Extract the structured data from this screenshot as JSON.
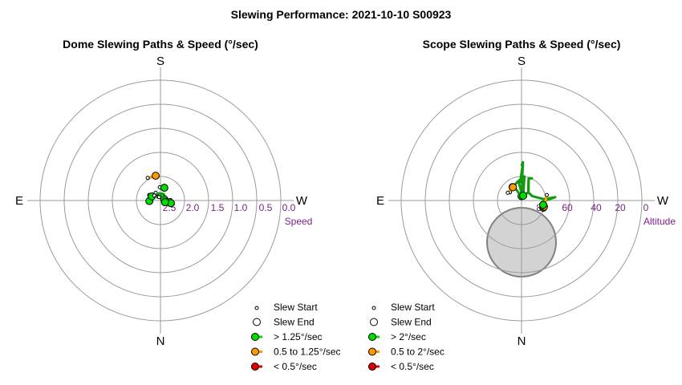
{
  "title": "Slewing Performance: 2021-10-10 S00923",
  "chart_data": [
    {
      "type": "scatter",
      "subtype": "polar-paths",
      "title": "Dome Slewing Paths & Speed (°/sec)",
      "directions": {
        "top": "S",
        "bottom": "N",
        "left": "E",
        "right": "W"
      },
      "radial_label": "Speed",
      "radial_ticks": [
        "2.5",
        "2.0",
        "1.5",
        "1.0",
        "0.5",
        "0.0"
      ],
      "radial_range": [
        2.5,
        0.0
      ],
      "grid": true,
      "legend": {
        "placement": "bottom-right",
        "entries": [
          {
            "label": "Slew Start",
            "marker": "start"
          },
          {
            "label": "Slew End",
            "marker": "end"
          },
          {
            "label": "> 1.25°/sec",
            "color": "#00dd00"
          },
          {
            "label": "0.5 to 1.25°/sec",
            "color": "#ff9900"
          },
          {
            "label": "< 0.5°/sec",
            "color": "#dd0000"
          }
        ]
      },
      "paths": [
        {
          "speed_class": "medium",
          "points": [
            [
              -0.53,
              0.94
            ],
            [
              -0.2,
              1.03
            ]
          ]
        },
        {
          "speed_class": "fast",
          "points": [
            [
              -0.03,
              0.55
            ],
            [
              0.16,
              0.53
            ]
          ]
        },
        {
          "speed_class": "fast",
          "points": [
            [
              -0.47,
              0.23
            ],
            [
              -0.42,
              0.05
            ],
            [
              -0.46,
              -0.02
            ]
          ]
        },
        {
          "speed_class": "fast",
          "points": [
            [
              -0.2,
              0.32
            ],
            [
              -0.33,
              0.18
            ],
            [
              -0.36,
              0.17
            ]
          ]
        },
        {
          "speed_class": "fast",
          "points": [
            [
              -0.26,
              0.21
            ],
            [
              -0.06,
              0.3
            ],
            [
              0.13,
              0.27
            ],
            [
              0.19,
              0.14
            ],
            [
              0.16,
              0.05
            ]
          ]
        },
        {
          "speed_class": "fast",
          "points": [
            [
              -0.1,
              0.16
            ],
            [
              -0.0,
              0.2
            ],
            [
              0.16,
              0.11
            ],
            [
              0.28,
              0.01
            ],
            [
              0.26,
              -0.05
            ]
          ]
        },
        {
          "speed_class": "fast",
          "points": [
            [
              0.42,
              0.02
            ],
            [
              0.43,
              -0.05
            ],
            [
              0.43,
              -0.11
            ]
          ]
        },
        {
          "speed_class": "fast",
          "points": [
            [
              -0.06,
              0.14
            ],
            [
              0.08,
              0.15
            ],
            [
              0.19,
              0.02
            ],
            [
              0.19,
              -0.07
            ]
          ]
        }
      ]
    },
    {
      "type": "scatter",
      "subtype": "polar-paths",
      "title": "Scope Slewing Paths & Speed (°/sec)",
      "directions": {
        "top": "S",
        "bottom": "N",
        "left": "E",
        "right": "W"
      },
      "radial_label": "Altitude",
      "radial_ticks": [
        "80",
        "60",
        "40",
        "20",
        "0"
      ],
      "radial_range": [
        90,
        0
      ],
      "grid": true,
      "shaded_region": "gray disc below center (restricted zone)",
      "legend": {
        "placement": "bottom-right",
        "entries": [
          {
            "label": "Slew Start",
            "marker": "start"
          },
          {
            "label": "Slew End",
            "marker": "end"
          },
          {
            "label": "> 2°/sec",
            "color": "#00dd00"
          },
          {
            "label": "0.5 to 2°/sec",
            "color": "#ff9900"
          },
          {
            "label": "< 0.5°/sec",
            "color": "#dd0000"
          }
        ]
      },
      "paths": [
        {
          "speed_class": "fast",
          "points": [
            [
              0.05,
              0.12
            ],
            [
              -0.1,
              0.7
            ],
            [
              -0.04,
              0.88
            ],
            [
              0.04,
              1.42
            ],
            [
              0.01,
              1.48
            ],
            [
              0.06,
              1.59
            ],
            [
              0.02,
              0.74
            ],
            [
              0.04,
              0.44
            ],
            [
              -0.01,
              0.2
            ],
            [
              0.0,
              0.18
            ]
          ]
        },
        {
          "speed_class": "fast",
          "points": [
            [
              0.0,
              0.18
            ],
            [
              0.1,
              0.22
            ],
            [
              0.2,
              0.29
            ],
            [
              0.28,
              0.34
            ],
            [
              0.29,
              0.86
            ],
            [
              0.34,
              0.92
            ],
            [
              0.43,
              0.92
            ],
            [
              0.3,
              0.93
            ],
            [
              0.29,
              0.33
            ],
            [
              0.45,
              0.18
            ],
            [
              0.92,
              0.06
            ],
            [
              1.4,
              0.14
            ],
            [
              1.0,
              0.0
            ],
            [
              0.95,
              -0.15
            ],
            [
              0.9,
              -0.3
            ]
          ]
        },
        {
          "speed_class": "fast",
          "points": [
            [
              0.0,
              0.15
            ],
            [
              -0.2,
              0.43
            ],
            [
              -0.4,
              0.63
            ],
            [
              -0.37,
              0.56
            ],
            [
              -0.1,
              0.84
            ],
            [
              0.12,
              1.0
            ],
            [
              0.07,
              0.2
            ]
          ]
        },
        {
          "speed_class": "medium",
          "points": [
            [
              -0.48,
              0.34
            ],
            [
              -0.42,
              0.5
            ],
            [
              -0.37,
              0.56
            ]
          ]
        },
        {
          "speed_class": "medium",
          "points": [
            [
              -0.57,
              0.32
            ],
            [
              -0.36,
              0.55
            ]
          ]
        },
        {
          "speed_class": "medium",
          "points": [
            [
              1.05,
              0.23
            ],
            [
              1.0,
              0.0
            ],
            [
              0.93,
              -0.26
            ]
          ]
        },
        {
          "speed_class": "fast",
          "points": [
            [
              0.86,
              -0.3
            ],
            [
              0.9,
              -0.18
            ]
          ]
        }
      ]
    }
  ]
}
